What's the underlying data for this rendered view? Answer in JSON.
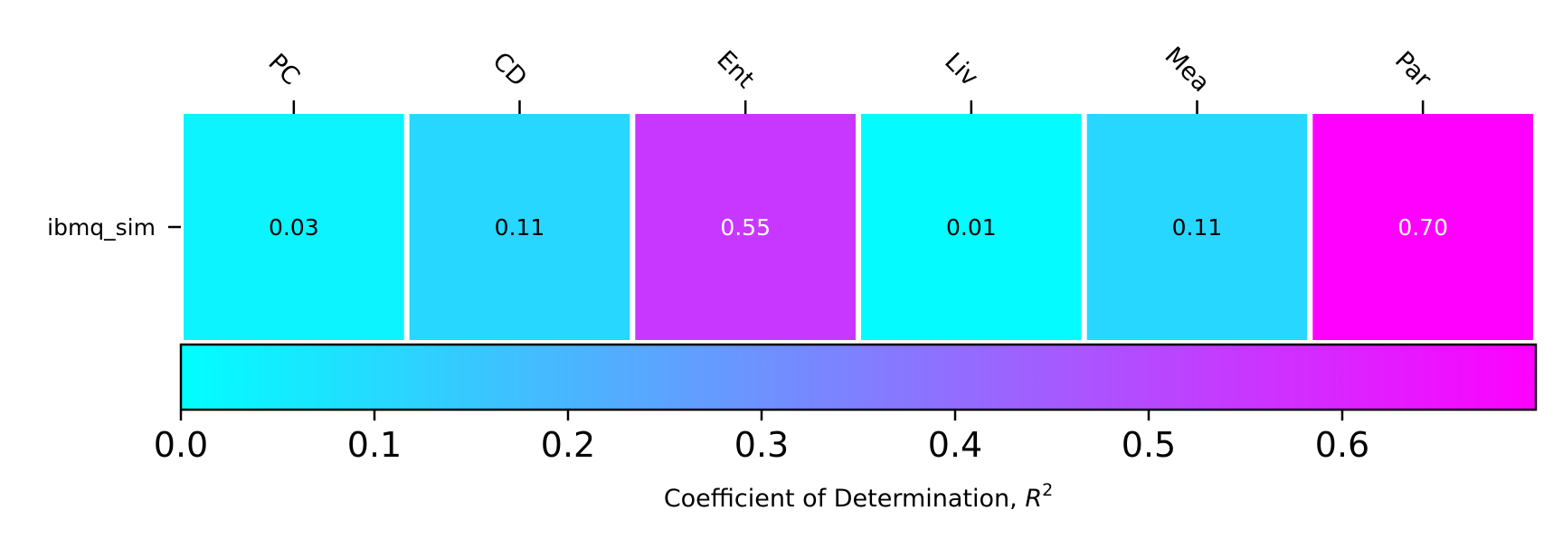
{
  "chart_data": {
    "type": "heatmap",
    "title": "",
    "columns": [
      "PC",
      "CD",
      "Ent",
      "Liv",
      "Mea",
      "Par"
    ],
    "rows": [
      "ibmq_sim"
    ],
    "values": [
      [
        0.03,
        0.11,
        0.55,
        0.01,
        0.11,
        0.7
      ]
    ],
    "value_labels": [
      [
        "0.03",
        "0.11",
        "0.55",
        "0.01",
        "0.11",
        "0.70"
      ]
    ],
    "colormap": "cool",
    "color_low": "#00ffff",
    "color_high": "#ff00ff",
    "colorbar": {
      "orientation": "horizontal",
      "position": "bottom",
      "range": [
        0.0,
        0.7
      ],
      "ticks": [
        0.0,
        0.1,
        0.2,
        0.3,
        0.4,
        0.5,
        0.6
      ],
      "tick_labels": [
        "0.0",
        "0.1",
        "0.2",
        "0.3",
        "0.4",
        "0.5",
        "0.6"
      ],
      "label": "Coefficient of Determination, ",
      "label_math": "R",
      "label_sup": "2"
    },
    "column_labels_position": "top",
    "column_label_rotation": "45 degrees",
    "grid": false
  }
}
